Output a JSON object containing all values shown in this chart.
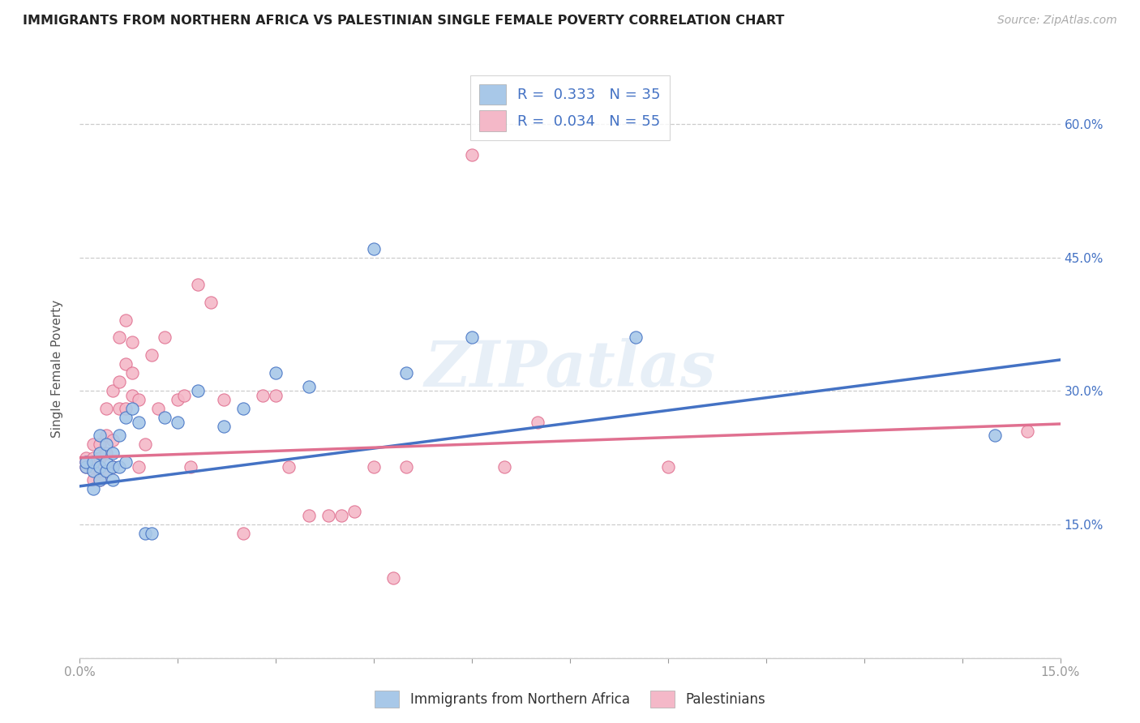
{
  "title": "IMMIGRANTS FROM NORTHERN AFRICA VS PALESTINIAN SINGLE FEMALE POVERTY CORRELATION CHART",
  "source": "Source: ZipAtlas.com",
  "ylabel": "Single Female Poverty",
  "xlim": [
    0.0,
    0.15
  ],
  "ylim": [
    0.0,
    0.65
  ],
  "xticks": [
    0.0,
    0.015,
    0.03,
    0.045,
    0.06,
    0.075,
    0.09,
    0.105,
    0.12,
    0.135,
    0.15
  ],
  "xtick_labels": [
    "0.0%",
    "",
    "",
    "",
    "",
    "",
    "",
    "",
    "",
    "",
    "15.0%"
  ],
  "yticks": [
    0.0,
    0.15,
    0.3,
    0.45,
    0.6
  ],
  "ytick_labels_right": [
    "",
    "15.0%",
    "30.0%",
    "45.0%",
    "60.0%"
  ],
  "blue_color": "#a8c8e8",
  "pink_color": "#f4b8c8",
  "blue_line_color": "#4472c4",
  "pink_line_color": "#e07090",
  "blue_scatter_x": [
    0.001,
    0.001,
    0.002,
    0.002,
    0.002,
    0.003,
    0.003,
    0.003,
    0.003,
    0.004,
    0.004,
    0.004,
    0.005,
    0.005,
    0.005,
    0.006,
    0.006,
    0.007,
    0.007,
    0.008,
    0.009,
    0.01,
    0.011,
    0.013,
    0.015,
    0.018,
    0.022,
    0.025,
    0.03,
    0.035,
    0.045,
    0.05,
    0.06,
    0.085,
    0.14
  ],
  "blue_scatter_y": [
    0.215,
    0.22,
    0.19,
    0.21,
    0.22,
    0.2,
    0.215,
    0.23,
    0.25,
    0.21,
    0.22,
    0.24,
    0.2,
    0.215,
    0.23,
    0.215,
    0.25,
    0.22,
    0.27,
    0.28,
    0.265,
    0.14,
    0.14,
    0.27,
    0.265,
    0.3,
    0.26,
    0.28,
    0.32,
    0.305,
    0.46,
    0.32,
    0.36,
    0.36,
    0.25
  ],
  "pink_scatter_x": [
    0.001,
    0.001,
    0.001,
    0.002,
    0.002,
    0.002,
    0.002,
    0.003,
    0.003,
    0.003,
    0.003,
    0.004,
    0.004,
    0.004,
    0.004,
    0.005,
    0.005,
    0.005,
    0.006,
    0.006,
    0.006,
    0.007,
    0.007,
    0.007,
    0.008,
    0.008,
    0.008,
    0.009,
    0.009,
    0.01,
    0.011,
    0.012,
    0.013,
    0.015,
    0.016,
    0.017,
    0.018,
    0.02,
    0.022,
    0.025,
    0.028,
    0.03,
    0.032,
    0.035,
    0.038,
    0.04,
    0.042,
    0.045,
    0.048,
    0.05,
    0.06,
    0.065,
    0.07,
    0.09,
    0.145
  ],
  "pink_scatter_y": [
    0.215,
    0.22,
    0.225,
    0.2,
    0.215,
    0.225,
    0.24,
    0.2,
    0.21,
    0.225,
    0.24,
    0.21,
    0.23,
    0.25,
    0.28,
    0.215,
    0.245,
    0.3,
    0.28,
    0.31,
    0.36,
    0.28,
    0.33,
    0.38,
    0.295,
    0.32,
    0.355,
    0.215,
    0.29,
    0.24,
    0.34,
    0.28,
    0.36,
    0.29,
    0.295,
    0.215,
    0.42,
    0.4,
    0.29,
    0.14,
    0.295,
    0.295,
    0.215,
    0.16,
    0.16,
    0.16,
    0.165,
    0.215,
    0.09,
    0.215,
    0.565,
    0.215,
    0.265,
    0.215,
    0.255
  ]
}
